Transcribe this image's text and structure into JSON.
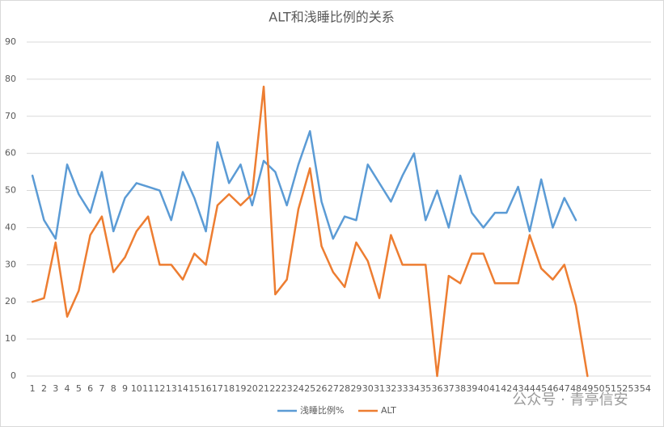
{
  "chart_data": {
    "type": "line",
    "title": "ALT和浅睡比例的关系",
    "categories": [
      "1",
      "2",
      "3",
      "4",
      "5",
      "6",
      "7",
      "8",
      "9",
      "10",
      "11",
      "12",
      "13",
      "14",
      "15",
      "16",
      "17",
      "18",
      "19",
      "20",
      "21",
      "22",
      "23",
      "24",
      "25",
      "26",
      "27",
      "28",
      "29",
      "30",
      "31",
      "32",
      "33",
      "34",
      "35",
      "36",
      "37",
      "38",
      "39",
      "40",
      "41",
      "42",
      "43",
      "44",
      "45",
      "46",
      "47",
      "48",
      "49",
      "50",
      "51",
      "52",
      "53",
      "54"
    ],
    "series": [
      {
        "name": "浅睡比例%",
        "color": "#5b9bd5",
        "values": [
          54,
          42,
          37,
          57,
          49,
          44,
          55,
          39,
          48,
          52,
          51,
          50,
          42,
          55,
          48,
          39,
          63,
          52,
          57,
          46,
          58,
          55,
          46,
          57,
          66,
          47,
          37,
          43,
          42,
          57,
          52,
          47,
          54,
          60,
          42,
          50,
          40,
          54,
          44,
          40,
          44,
          44,
          51,
          39,
          53,
          40,
          48,
          42,
          null,
          null,
          null,
          null,
          null,
          null
        ]
      },
      {
        "name": "ALT",
        "color": "#ed7d31",
        "values": [
          20,
          21,
          36,
          16,
          23,
          38,
          43,
          28,
          32,
          39,
          43,
          30,
          30,
          26,
          33,
          30,
          46,
          49,
          46,
          49,
          78,
          22,
          26,
          45,
          56,
          35,
          28,
          24,
          36,
          31,
          21,
          38,
          30,
          30,
          30,
          0,
          27,
          25,
          33,
          33,
          25,
          25,
          25,
          38,
          29,
          26,
          30,
          19,
          0,
          null,
          null,
          null,
          null,
          null
        ]
      }
    ],
    "ylim": [
      0,
      90
    ],
    "yticks": [
      0,
      10,
      20,
      30,
      40,
      50,
      60,
      70,
      80,
      90
    ],
    "grid": true,
    "legend": "bottom"
  },
  "watermark": "公众号 · 青亭信安"
}
